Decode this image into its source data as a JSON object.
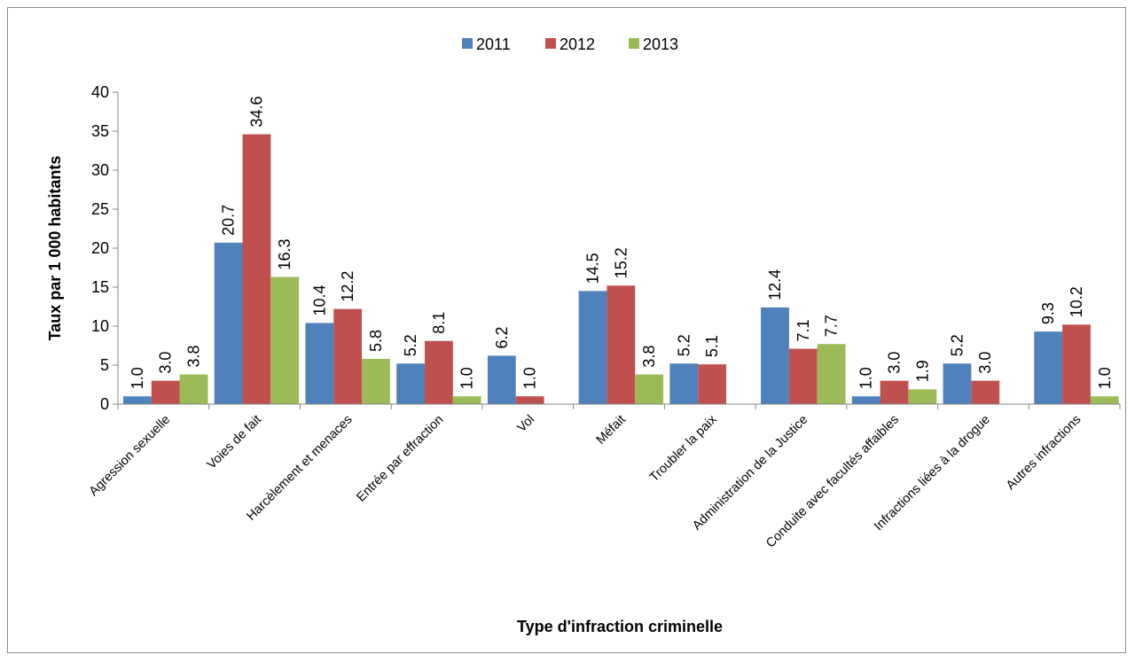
{
  "chart_data": {
    "type": "bar",
    "title": "",
    "xlabel": "Type d'infraction criminelle",
    "ylabel": "Taux par 1 000 habitants",
    "ylim": [
      0,
      40
    ],
    "yticks": [
      0,
      5,
      10,
      15,
      20,
      25,
      30,
      35,
      40
    ],
    "grid": false,
    "legend_position": "top-center",
    "categories": [
      "Agression sexuelle",
      "Voies de fait",
      "Harcèlement et menaces",
      "Entrée par effraction",
      "Vol",
      "Méfait",
      "Troubler la paix",
      "Administration de la Justice",
      "Conduite avec facultés affaibles",
      "Infractions liées à la drogue",
      "Autres infractions"
    ],
    "series": [
      {
        "name": "2011",
        "color": "#4f81bd",
        "values": [
          1.0,
          20.7,
          10.4,
          5.2,
          6.2,
          14.5,
          5.2,
          12.4,
          1.0,
          5.2,
          9.3
        ]
      },
      {
        "name": "2012",
        "color": "#c0504d",
        "values": [
          3.0,
          34.6,
          12.2,
          8.1,
          1.0,
          15.2,
          5.1,
          7.1,
          3.0,
          3.0,
          10.2
        ]
      },
      {
        "name": "2013",
        "color": "#9bbb59",
        "values": [
          3.8,
          16.3,
          5.8,
          1.0,
          null,
          3.8,
          null,
          7.7,
          1.9,
          null,
          1.0
        ]
      }
    ]
  }
}
